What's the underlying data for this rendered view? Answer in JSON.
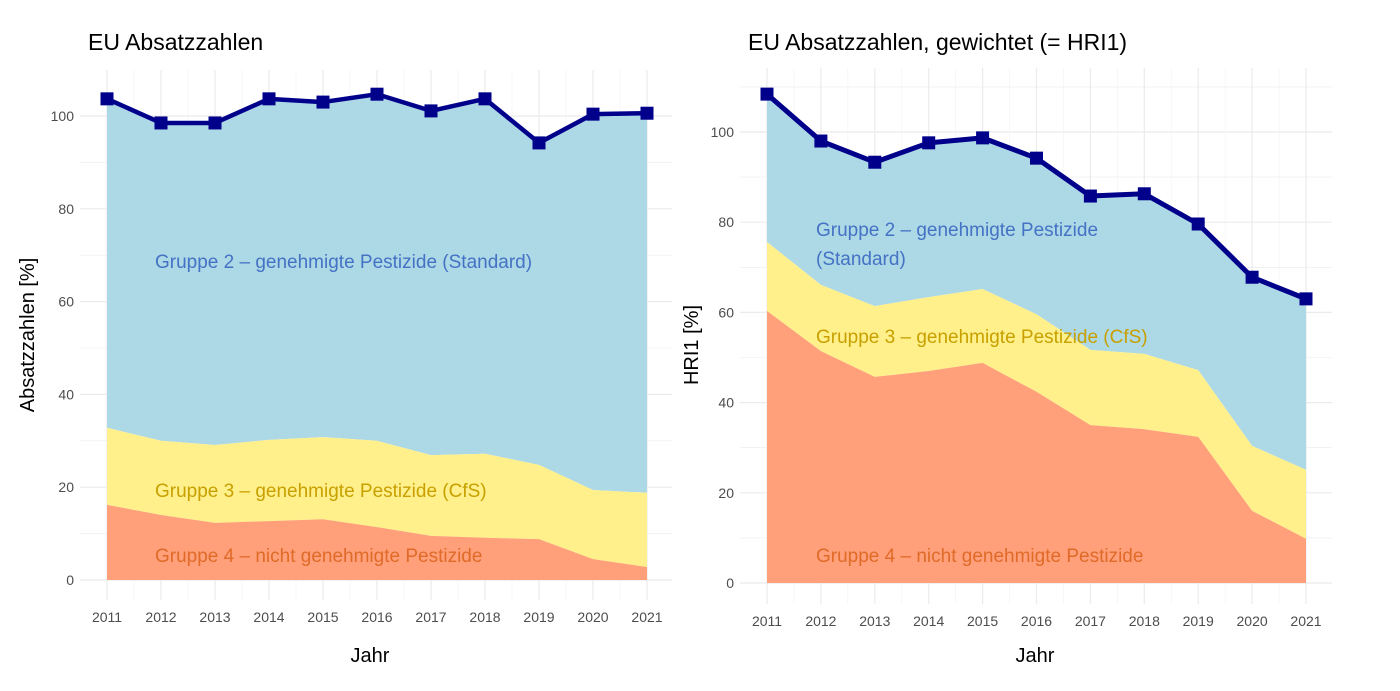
{
  "colors": {
    "group2": "#add8e6",
    "group3": "#fff08c",
    "group4": "#ffa07a",
    "line": "#00008b",
    "label2": "#4472c4",
    "label3": "#c8a000",
    "label4": "#e06a28"
  },
  "chart_data": [
    {
      "type": "area",
      "title": "EU Absatzzahlen",
      "xlabel": "Jahr",
      "ylabel": "Absatzzahlen [%]",
      "x": [
        2011,
        2012,
        2013,
        2014,
        2015,
        2016,
        2017,
        2018,
        2019,
        2020,
        2021
      ],
      "ylim": [
        0,
        110
      ],
      "yticks": [
        0,
        20,
        40,
        60,
        80,
        100
      ],
      "grid": true,
      "stacked_tops": {
        "group4": [
          16.2,
          14.0,
          12.3,
          12.7,
          13.1,
          11.4,
          9.5,
          9.1,
          8.8,
          4.5,
          2.8
        ],
        "group3": [
          32.8,
          30.0,
          29.1,
          30.2,
          30.8,
          30.0,
          26.9,
          27.2,
          24.8,
          19.4,
          18.8
        ],
        "total": [
          103.7,
          98.5,
          98.5,
          103.7,
          103.0,
          104.7,
          101.1,
          103.7,
          94.2,
          100.4,
          100.6
        ]
      },
      "labels": {
        "group2": "Gruppe 2 – genehmigte Pestizide (Standard)",
        "group3": "Gruppe 3 – genehmigte Pestizide (CfS)",
        "group4": "Gruppe 4 – nicht genehmigte Pestizide"
      }
    },
    {
      "type": "area",
      "title": "EU Absatzzahlen, gewichtet (= HRI1)",
      "xlabel": "Jahr",
      "ylabel": "HRI1 [%]",
      "x": [
        2011,
        2012,
        2013,
        2014,
        2015,
        2016,
        2017,
        2018,
        2019,
        2020,
        2021
      ],
      "ylim": [
        0,
        114
      ],
      "yticks": [
        0,
        20,
        40,
        60,
        80,
        100
      ],
      "grid": true,
      "stacked_tops": {
        "group4": [
          60.3,
          51.4,
          45.7,
          47.0,
          48.8,
          42.4,
          35.0,
          34.1,
          32.4,
          16.0,
          9.8
        ],
        "group3": [
          75.6,
          66.1,
          61.4,
          63.4,
          65.2,
          59.6,
          51.7,
          50.8,
          47.2,
          30.4,
          25.1
        ],
        "total": [
          108.4,
          98.0,
          93.3,
          97.6,
          98.7,
          94.2,
          85.8,
          86.3,
          79.6,
          67.8,
          63.0
        ]
      },
      "labels": {
        "group2a": "Gruppe 2 – genehmigte Pestizide",
        "group2b": "(Standard)",
        "group3": "Gruppe 3 – genehmigte Pestizide (CfS)",
        "group4": "Gruppe 4 – nicht genehmigte Pestizide"
      }
    }
  ]
}
